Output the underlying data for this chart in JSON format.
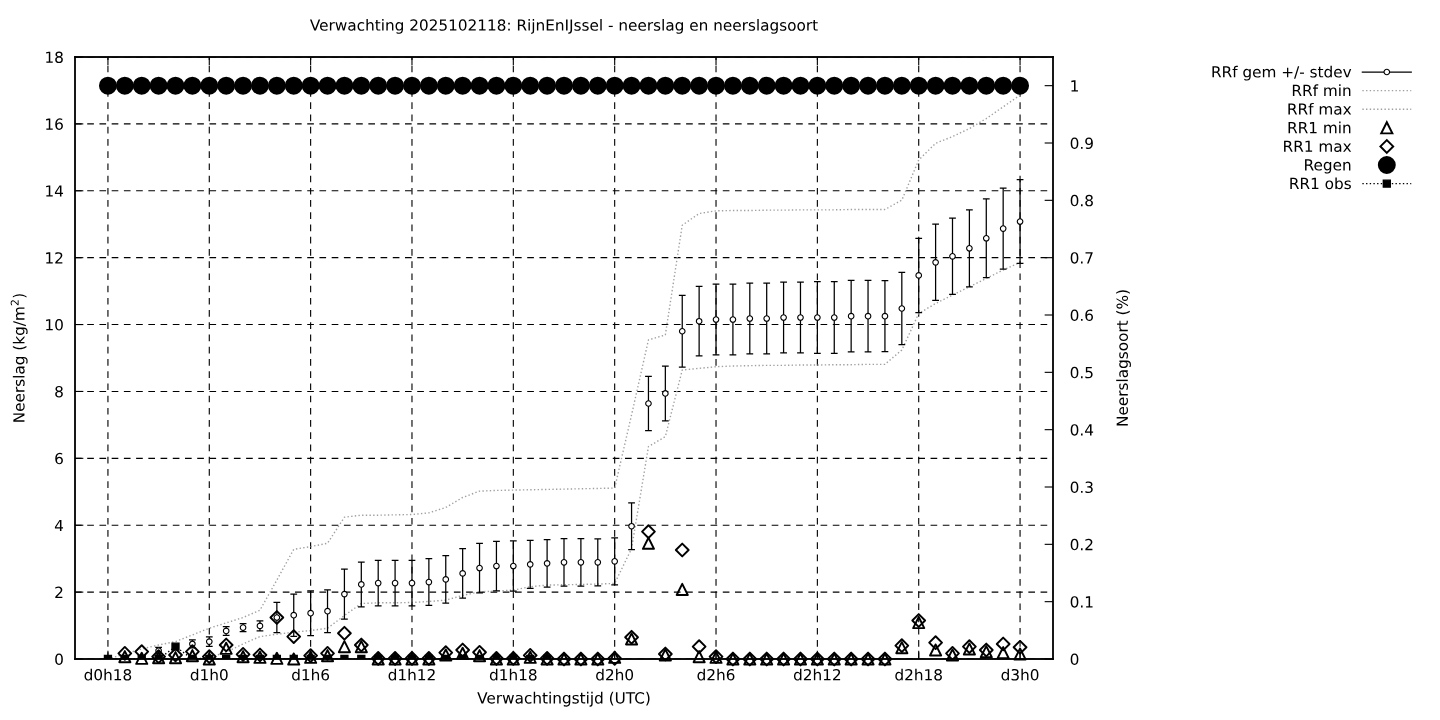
{
  "chart_data": {
    "type": "scatter",
    "title": "Verwachting 2025102118: RijnEnIJssel - neerslag en neerslagsoort",
    "xlabel": "Verwachtingstijd (UTC)",
    "ylabel": "Neerslag (kg/m$^{2}$)",
    "y2label": "Neerslagsoort (%)",
    "categories": [
      "d0h18",
      null,
      null,
      null,
      null,
      null,
      "d1h0",
      null,
      null,
      null,
      null,
      null,
      "d1h6",
      null,
      null,
      null,
      null,
      null,
      "d1h12",
      null,
      null,
      null,
      null,
      null,
      "d1h18",
      null,
      null,
      null,
      null,
      null,
      "d2h0",
      null,
      null,
      null,
      null,
      null,
      "d2h6",
      null,
      null,
      null,
      null,
      null,
      "d2h12",
      null,
      null,
      null,
      null,
      null,
      "d2h18",
      null,
      null,
      null,
      null,
      null,
      "d3h0"
    ],
    "ylim": [
      0,
      18
    ],
    "yticks": [
      0,
      2,
      4,
      6,
      8,
      10,
      12,
      14,
      16,
      18
    ],
    "y2lim": [
      0,
      1.05
    ],
    "y2ticks": [
      0,
      0.1,
      0.2,
      0.3,
      0.4,
      0.5,
      0.6,
      0.7,
      0.8,
      0.9,
      1
    ],
    "grid": true,
    "legend": "top right",
    "series": [
      {
        "name": "RRf gem +/- stdev",
        "marker": "circle",
        "color": "#000000",
        "values": [
          null,
          null,
          null,
          0.25,
          null,
          0.45,
          0.52,
          0.84,
          0.94,
          0.99,
          1.24,
          1.31,
          1.37,
          1.43,
          1.94,
          2.23,
          2.27,
          2.27,
          2.27,
          2.3,
          2.38,
          2.56,
          2.72,
          2.78,
          2.78,
          2.83,
          2.86,
          2.89,
          2.89,
          2.89,
          2.92,
          3.97,
          7.64,
          7.94,
          9.8,
          10.1,
          10.15,
          10.15,
          10.18,
          10.18,
          10.21,
          10.21,
          10.21,
          10.21,
          10.25,
          10.25,
          10.25,
          10.48,
          11.47,
          11.86,
          12.04,
          12.28,
          12.58,
          12.87,
          13.08
        ],
        "errors": [
          null,
          null,
          null,
          0.1,
          null,
          0.12,
          0.14,
          0.13,
          0.12,
          0.15,
          0.45,
          0.63,
          0.67,
          0.64,
          0.75,
          0.67,
          0.68,
          0.68,
          0.68,
          0.7,
          0.71,
          0.74,
          0.74,
          0.74,
          0.75,
          0.72,
          0.71,
          0.71,
          0.71,
          0.7,
          0.7,
          0.7,
          0.81,
          0.82,
          1.07,
          1.04,
          1.06,
          1.06,
          1.06,
          1.06,
          1.06,
          1.06,
          1.07,
          1.07,
          1.07,
          1.07,
          1.06,
          1.08,
          1.11,
          1.14,
          1.14,
          1.15,
          1.18,
          1.21,
          1.25
        ]
      },
      {
        "name": "RRf min",
        "type": "line",
        "line_style": "dotted",
        "color": "#a0a0a0",
        "values": [
          0,
          0,
          0,
          0,
          0,
          0,
          0.05,
          0.2,
          0.45,
          0.67,
          0.74,
          0.8,
          0.85,
          0.92,
          1.3,
          1.66,
          1.68,
          1.68,
          1.69,
          1.72,
          1.76,
          1.9,
          2.01,
          2.03,
          2.06,
          2.16,
          2.21,
          2.22,
          2.23,
          2.24,
          2.26,
          3.3,
          6.35,
          6.65,
          8.64,
          8.69,
          8.74,
          8.76,
          8.77,
          8.78,
          8.78,
          8.79,
          8.79,
          8.8,
          8.8,
          8.81,
          8.81,
          9.24,
          10.33,
          10.63,
          10.88,
          11.13,
          11.38,
          11.63,
          11.86
        ]
      },
      {
        "name": "RRf max",
        "type": "line",
        "line_style": "dotted",
        "color": "#a0a0a0",
        "values": [
          0,
          0.15,
          0.3,
          0.42,
          0.52,
          0.72,
          0.92,
          1.08,
          1.24,
          1.46,
          2.36,
          3.28,
          3.36,
          3.46,
          4.24,
          4.3,
          4.3,
          4.31,
          4.32,
          4.37,
          4.53,
          4.83,
          5.02,
          5.04,
          5.05,
          5.06,
          5.07,
          5.08,
          5.09,
          5.1,
          5.11,
          7.3,
          9.54,
          9.69,
          12.97,
          13.32,
          13.4,
          13.41,
          13.41,
          13.42,
          13.42,
          13.43,
          13.43,
          13.43,
          13.44,
          13.44,
          13.44,
          13.72,
          14.92,
          15.42,
          15.62,
          15.86,
          16.16,
          16.51,
          16.86
        ]
      },
      {
        "name": "RR1 min",
        "marker": "triangle",
        "color": "#000000",
        "values": [
          null,
          0.07,
          0.02,
          0.04,
          0.04,
          0.1,
          0,
          0.32,
          0.07,
          0.05,
          0.02,
          0,
          0.05,
          0.1,
          0.37,
          0.37,
          0,
          0,
          0,
          0,
          0.12,
          0.17,
          0.1,
          0,
          0,
          0.05,
          0,
          0,
          0,
          0,
          0.05,
          0.6,
          3.46,
          0.12,
          2.08,
          0.07,
          0.05,
          0,
          0,
          0,
          0,
          0,
          0,
          0,
          0,
          0,
          0,
          0.34,
          1.09,
          0.27,
          0.12,
          0.3,
          0.22,
          0.19,
          0.15
        ]
      },
      {
        "name": "RR1 max",
        "marker": "diamond",
        "color": "#000000",
        "values": [
          null,
          0.17,
          0.22,
          0.07,
          0.12,
          0.22,
          0.07,
          0.42,
          0.14,
          0.12,
          1.24,
          0.67,
          0.1,
          0.17,
          0.77,
          0.42,
          0.02,
          0.02,
          0.02,
          0.02,
          0.19,
          0.27,
          0.2,
          0.02,
          0.02,
          0.11,
          0.02,
          0,
          0,
          0,
          0.02,
          0.65,
          3.81,
          0.15,
          3.26,
          0.37,
          0.07,
          0,
          0,
          0,
          0,
          0,
          0,
          0,
          0,
          0,
          0,
          0.4,
          1.15,
          0.49,
          0.17,
          0.37,
          0.27,
          0.45,
          0.35
        ]
      },
      {
        "name": "Regen",
        "marker": "circle",
        "axis": "y2",
        "color": "#000000",
        "values": [
          1,
          1,
          1,
          1,
          1,
          1,
          1,
          1,
          1,
          1,
          1,
          1,
          1,
          1,
          1,
          1,
          1,
          1,
          1,
          1,
          1,
          1,
          1,
          1,
          1,
          1,
          1,
          1,
          1,
          1,
          1,
          1,
          1,
          1,
          1,
          1,
          1,
          1,
          1,
          1,
          1,
          1,
          1,
          1,
          1,
          1,
          1,
          1,
          1,
          1,
          1,
          1,
          1,
          1,
          1
        ]
      },
      {
        "name": "RR1 obs",
        "type": "line",
        "marker": "square",
        "line_style": "dotted",
        "color": "#000000",
        "values": [
          0,
          0,
          0,
          0,
          0.37,
          0,
          0,
          0,
          0,
          0,
          0,
          0,
          0,
          0,
          0,
          0,
          0,
          0,
          0,
          0,
          0,
          0,
          0,
          0,
          0,
          0,
          0,
          null,
          null,
          null,
          null,
          null,
          null,
          null,
          null,
          null,
          null,
          null,
          null,
          null,
          null,
          null,
          null,
          null,
          null,
          null,
          null,
          null,
          null,
          null,
          null,
          null,
          null,
          null,
          null
        ]
      }
    ]
  }
}
